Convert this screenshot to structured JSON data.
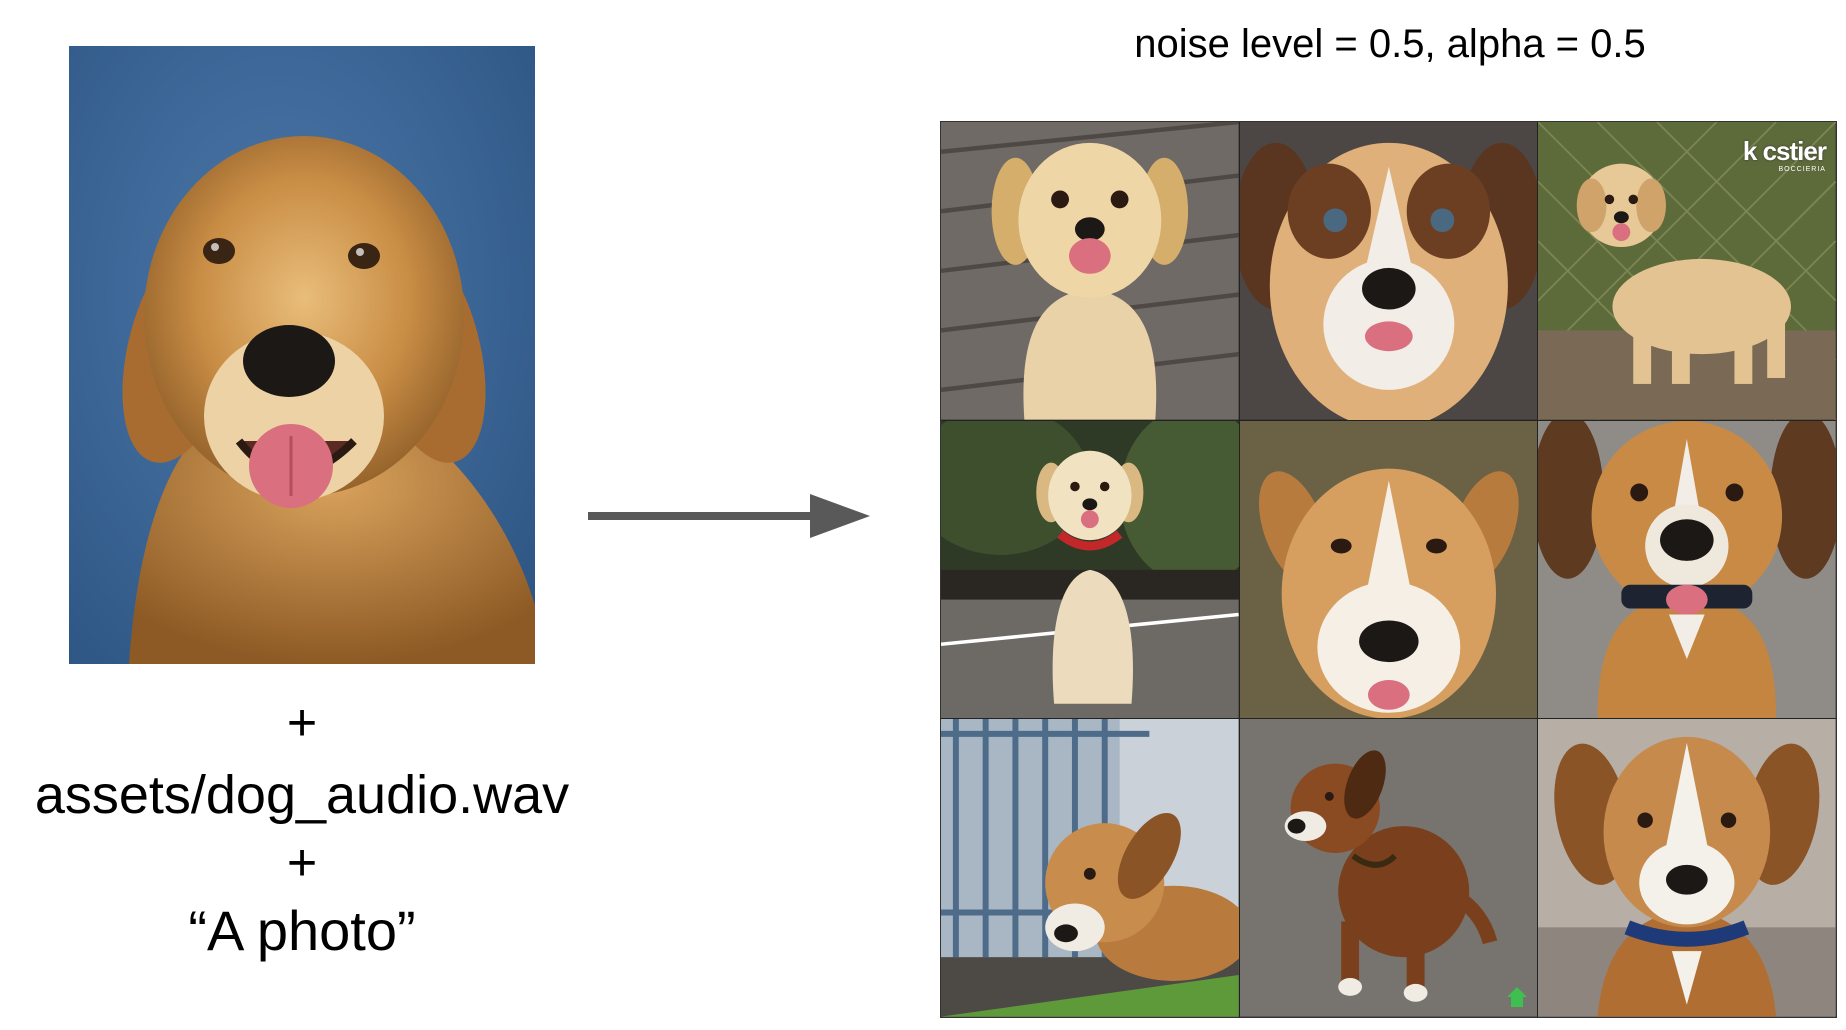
{
  "input": {
    "image_icon": "golden-retriever-photo",
    "plus_1": "+",
    "audio_file": "assets/dog_audio.wav",
    "plus_2": "+",
    "prompt": "“A photo”"
  },
  "arrow_icon": "right-arrow-icon",
  "output": {
    "caption_noise": "noise level = 0.5",
    "caption_sep": ", ",
    "caption_alpha": "alpha = 0.5",
    "cells": [
      {
        "subject": "golden-puppy-on-deck"
      },
      {
        "subject": "blue-eyed-dog-closeup"
      },
      {
        "subject": "fluffy-puppy-by-fence"
      },
      {
        "subject": "white-puppy-red-collar"
      },
      {
        "subject": "tan-dog-face-on-grass"
      },
      {
        "subject": "beagle-mix-dark-collar"
      },
      {
        "subject": "dog-lying-by-railing"
      },
      {
        "subject": "brown-dog-on-gravel"
      },
      {
        "subject": "hound-blue-collar-portrait"
      }
    ],
    "watermark": "k cstier",
    "watermark_sub": "BOCCIERIA",
    "badge_icon": "green-home-badge-icon"
  }
}
